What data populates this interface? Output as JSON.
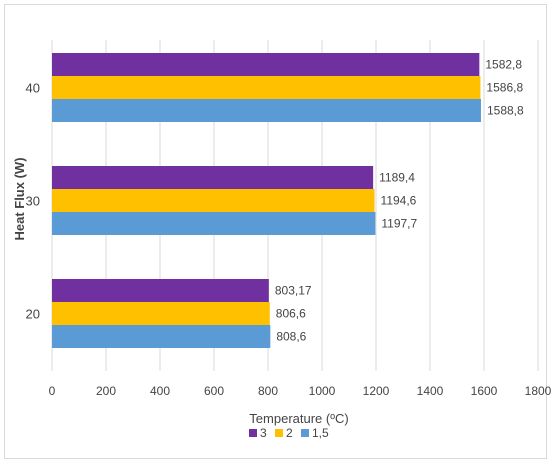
{
  "chart_data": {
    "type": "bar",
    "orientation": "horizontal",
    "categories": [
      "20",
      "30",
      "40"
    ],
    "series": [
      {
        "name": "3",
        "color": "#7030a0",
        "values": [
          803.17,
          1189.4,
          1582.8
        ],
        "labels": [
          "803,17",
          "1189,4",
          "1582,8"
        ]
      },
      {
        "name": "2",
        "color": "#ffc000",
        "values": [
          806.6,
          1194.6,
          1586.8
        ],
        "labels": [
          "806,6",
          "1194,6",
          "1586,8"
        ]
      },
      {
        "name": "1,5",
        "color": "#5b9bd5",
        "values": [
          808.6,
          1197.7,
          1588.8
        ],
        "labels": [
          "808,6",
          "1197,7",
          "1588,8"
        ]
      }
    ],
    "xlabel": "Temperature (ºC)",
    "ylabel": "Heat Flux (W)",
    "xlim": [
      0,
      1800
    ],
    "xticks": [
      0,
      200,
      400,
      600,
      800,
      1000,
      1200,
      1400,
      1600,
      1800
    ],
    "grid": "vertical",
    "legend_position": "bottom"
  }
}
